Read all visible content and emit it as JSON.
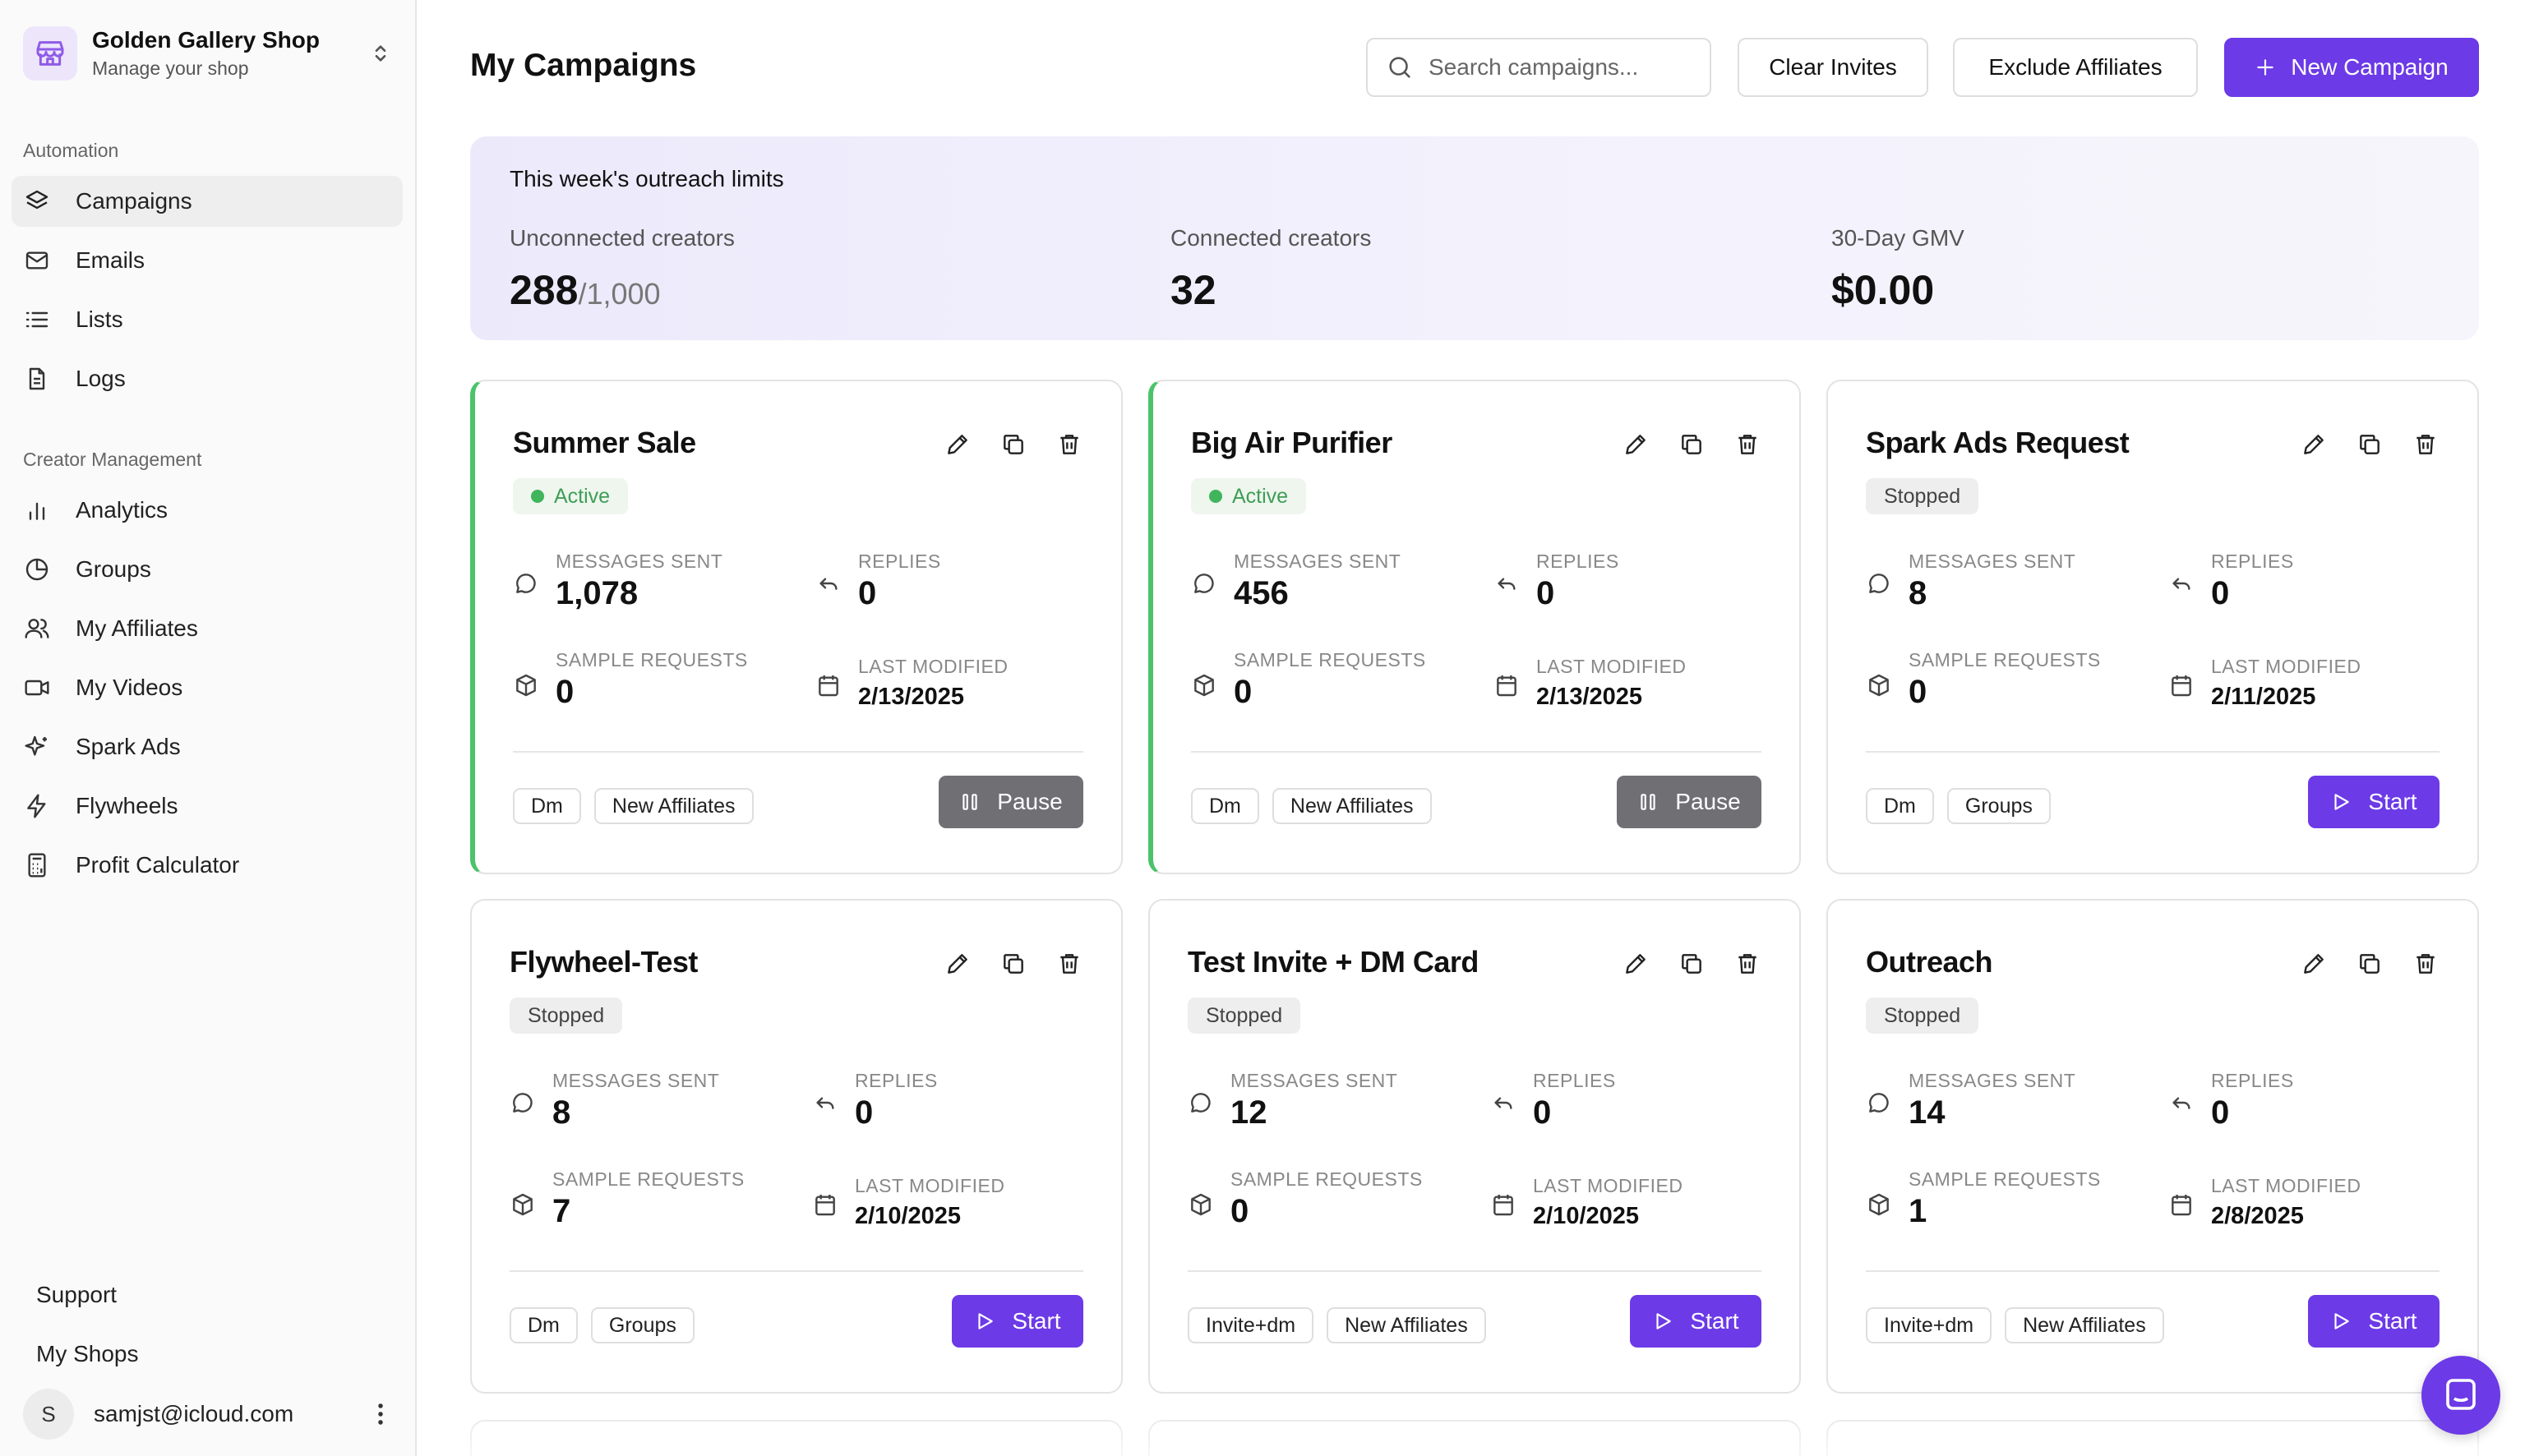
{
  "shop": {
    "name": "Golden Gallery Shop",
    "subtitle": "Manage your shop"
  },
  "sidebar": {
    "automation_label": "Automation",
    "automation_items": [
      {
        "label": "Campaigns",
        "icon": "layers-icon",
        "active": true
      },
      {
        "label": "Emails",
        "icon": "mail-icon"
      },
      {
        "label": "Lists",
        "icon": "list-icon"
      },
      {
        "label": "Logs",
        "icon": "file-text-icon"
      }
    ],
    "creator_label": "Creator Management",
    "creator_items": [
      {
        "label": "Analytics",
        "icon": "bar-chart-icon"
      },
      {
        "label": "Groups",
        "icon": "pie-chart-icon"
      },
      {
        "label": "My Affiliates",
        "icon": "users-icon"
      },
      {
        "label": "My Videos",
        "icon": "video-icon"
      },
      {
        "label": "Spark Ads",
        "icon": "sparkles-icon"
      },
      {
        "label": "Flywheels",
        "icon": "zap-icon"
      },
      {
        "label": "Profit Calculator",
        "icon": "calculator-icon"
      }
    ],
    "support_label": "Support",
    "my_shops_label": "My Shops",
    "user": {
      "initial": "S",
      "email": "samjst@icloud.com"
    }
  },
  "header": {
    "title": "My Campaigns",
    "search_placeholder": "Search campaigns...",
    "clear_invites_label": "Clear Invites",
    "exclude_affiliates_label": "Exclude Affiliates",
    "new_campaign_label": "New Campaign"
  },
  "limits": {
    "title": "This week's outreach limits",
    "unconnected": {
      "label": "Unconnected creators",
      "value": "288",
      "of": "/1,000"
    },
    "connected": {
      "label": "Connected creators",
      "value": "32"
    },
    "gmv": {
      "label": "30-Day GMV",
      "value": "$0.00"
    }
  },
  "stat_labels": {
    "messages_sent": "MESSAGES SENT",
    "replies": "REPLIES",
    "sample_requests": "SAMPLE REQUESTS",
    "last_modified": "LAST MODIFIED"
  },
  "campaigns": [
    {
      "title": "Summer Sale",
      "status": "Active",
      "messages_sent": "1,078",
      "replies": "0",
      "sample_requests": "0",
      "last_modified": "2/13/2025",
      "tags": [
        "Dm",
        "New Affiliates"
      ],
      "action": "Pause"
    },
    {
      "title": "Big Air Purifier",
      "status": "Active",
      "messages_sent": "456",
      "replies": "0",
      "sample_requests": "0",
      "last_modified": "2/13/2025",
      "tags": [
        "Dm",
        "New Affiliates"
      ],
      "action": "Pause"
    },
    {
      "title": "Spark Ads Request",
      "status": "Stopped",
      "messages_sent": "8",
      "replies": "0",
      "sample_requests": "0",
      "last_modified": "2/11/2025",
      "tags": [
        "Dm",
        "Groups"
      ],
      "action": "Start"
    },
    {
      "title": "Flywheel-Test",
      "status": "Stopped",
      "messages_sent": "8",
      "replies": "0",
      "sample_requests": "7",
      "last_modified": "2/10/2025",
      "tags": [
        "Dm",
        "Groups"
      ],
      "action": "Start"
    },
    {
      "title": "Test Invite + DM Card",
      "status": "Stopped",
      "messages_sent": "12",
      "replies": "0",
      "sample_requests": "0",
      "last_modified": "2/10/2025",
      "tags": [
        "Invite+dm",
        "New Affiliates"
      ],
      "action": "Start"
    },
    {
      "title": "Outreach",
      "status": "Stopped",
      "messages_sent": "14",
      "replies": "0",
      "sample_requests": "1",
      "last_modified": "2/8/2025",
      "tags": [
        "Invite+dm",
        "New Affiliates"
      ],
      "action": "Start"
    }
  ],
  "colors": {
    "accent": "#6c3ae6",
    "active_green": "#4cc36b",
    "pause_gray": "#6f6f74"
  }
}
